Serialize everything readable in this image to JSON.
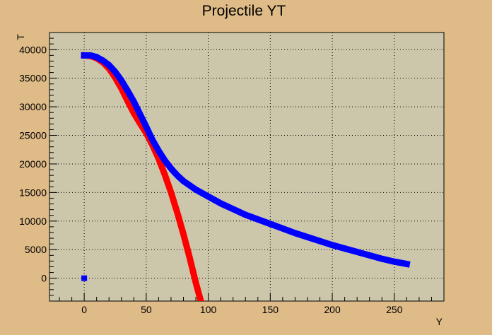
{
  "chart_data": {
    "type": "scatter",
    "title": "Projectile YT",
    "xlabel": "Y",
    "ylabel": "T",
    "xlim": [
      -28,
      290
    ],
    "ylim": [
      -4000,
      43000
    ],
    "x_ticks": [
      0,
      50,
      100,
      150,
      200,
      250
    ],
    "y_ticks": [
      0,
      5000,
      10000,
      15000,
      20000,
      25000,
      30000,
      35000,
      40000
    ],
    "grid": true,
    "colors": {
      "background": "#dfbb87",
      "plot_area": "#ccc6aa",
      "series_red": "#ff0000",
      "series_blue": "#0000ff"
    },
    "series": [
      {
        "color": "#ff0000",
        "points": [
          [
            0,
            39000
          ],
          [
            5,
            38900
          ],
          [
            10,
            38500
          ],
          [
            15,
            37800
          ],
          [
            20,
            36700
          ],
          [
            25,
            35100
          ],
          [
            30,
            33200
          ],
          [
            35,
            31000
          ],
          [
            40,
            28900
          ],
          [
            45,
            27100
          ],
          [
            50,
            25400
          ],
          [
            55,
            23300
          ],
          [
            60,
            20900
          ],
          [
            65,
            18100
          ],
          [
            70,
            15000
          ],
          [
            75,
            11500
          ],
          [
            80,
            7700
          ],
          [
            85,
            3600
          ],
          [
            90,
            -800
          ],
          [
            94,
            -4000
          ]
        ]
      },
      {
        "color": "#0000ff",
        "points": [
          [
            0,
            39000
          ],
          [
            5,
            39000
          ],
          [
            10,
            38700
          ],
          [
            15,
            38100
          ],
          [
            20,
            37300
          ],
          [
            25,
            36100
          ],
          [
            30,
            34600
          ],
          [
            35,
            32800
          ],
          [
            40,
            30900
          ],
          [
            45,
            28700
          ],
          [
            50,
            26500
          ],
          [
            55,
            24200
          ],
          [
            60,
            22300
          ],
          [
            65,
            20600
          ],
          [
            70,
            19200
          ],
          [
            75,
            18000
          ],
          [
            80,
            17000
          ],
          [
            90,
            15500
          ],
          [
            100,
            14300
          ],
          [
            110,
            13100
          ],
          [
            120,
            12100
          ],
          [
            130,
            11100
          ],
          [
            140,
            10300
          ],
          [
            150,
            9500
          ],
          [
            160,
            8700
          ],
          [
            170,
            7900
          ],
          [
            180,
            7200
          ],
          [
            190,
            6500
          ],
          [
            200,
            5800
          ],
          [
            210,
            5200
          ],
          [
            220,
            4600
          ],
          [
            230,
            4000
          ],
          [
            240,
            3400
          ],
          [
            250,
            2900
          ],
          [
            260,
            2500
          ]
        ],
        "extra_points": [
          [
            0,
            0
          ]
        ]
      }
    ]
  }
}
